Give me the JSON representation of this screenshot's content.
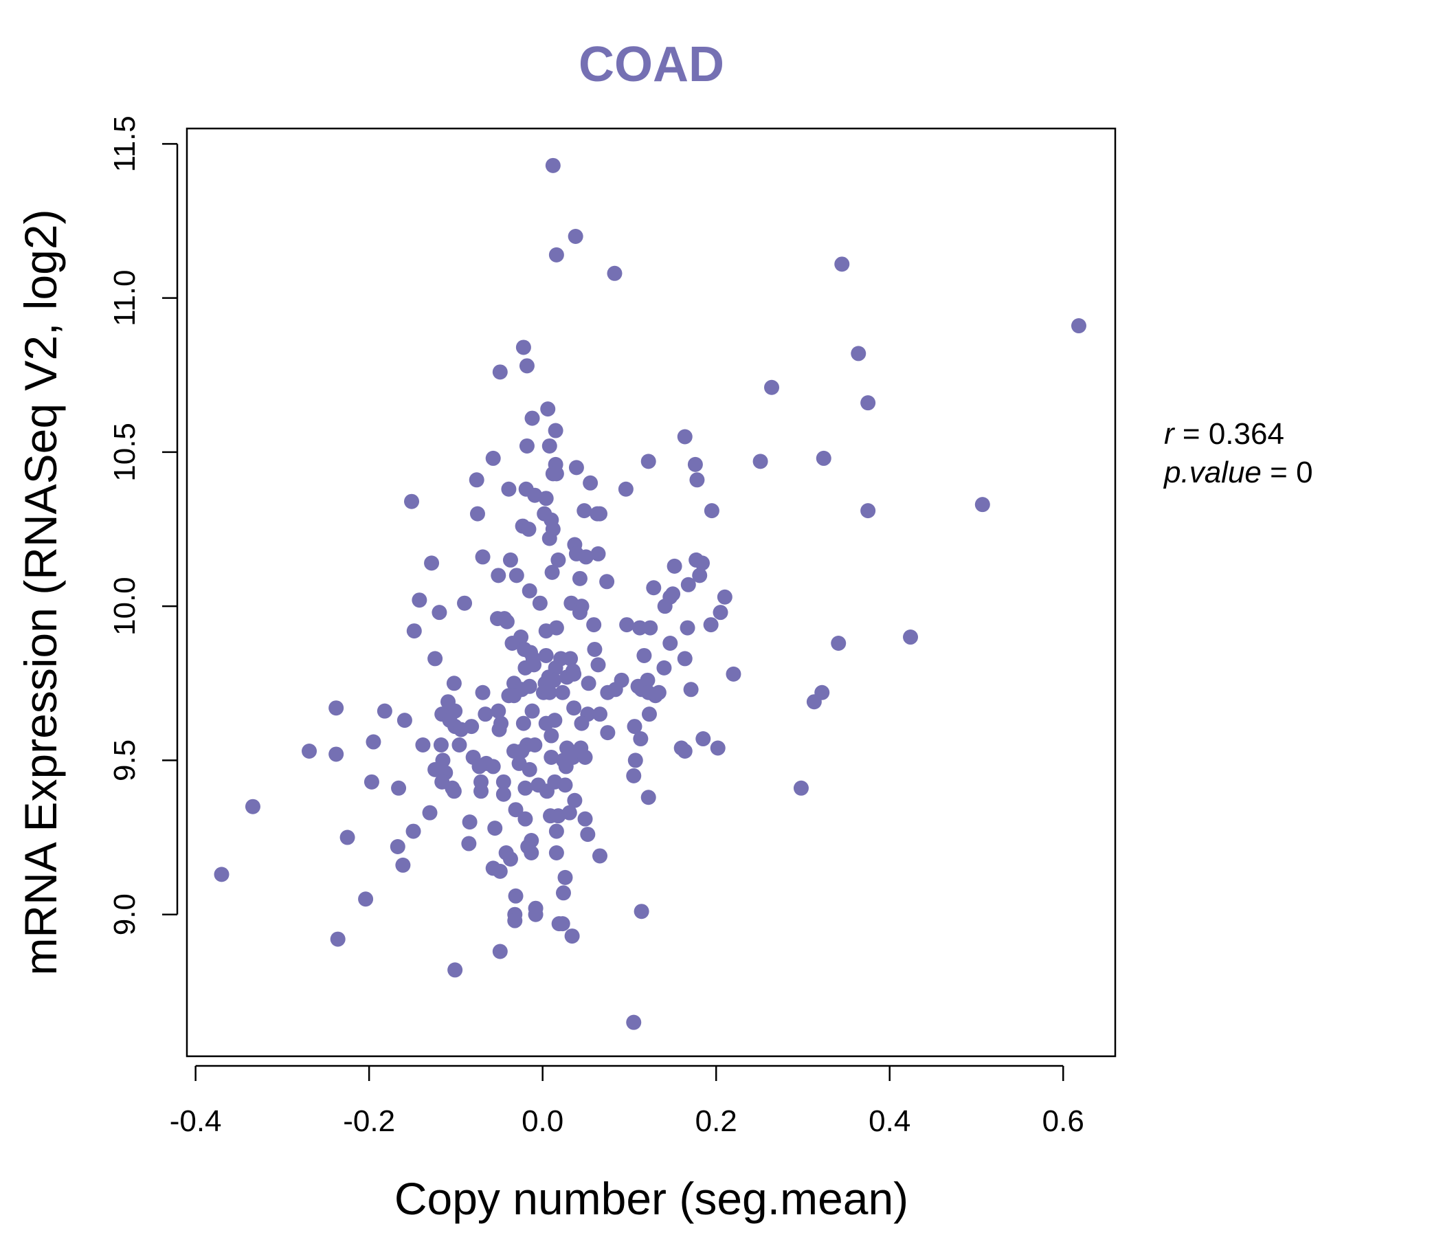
{
  "chart_data": {
    "type": "scatter",
    "title": "COAD",
    "xlabel": "Copy number (seg.mean)",
    "ylabel": "mRNA Expression (RNASeq V2, log2)",
    "xlim": [
      -0.41,
      0.66
    ],
    "ylim": [
      8.54,
      11.55
    ],
    "x_ticks": [
      -0.4,
      -0.2,
      0.0,
      0.2,
      0.4,
      0.6
    ],
    "x_tick_labels": [
      "-0.4",
      "-0.2",
      "0.0",
      "0.2",
      "0.4",
      "0.6"
    ],
    "y_ticks": [
      9.0,
      9.5,
      10.0,
      10.5,
      11.0,
      11.5
    ],
    "y_tick_labels": [
      "9.0",
      "9.5",
      "10.0",
      "10.5",
      "11.0",
      "11.5"
    ],
    "grid": false,
    "point_color": "#7570b3",
    "annotations": {
      "r_label": "r",
      "r_value": "0.364",
      "p_label": "p.value",
      "p_value": "0",
      "eq": "="
    },
    "points": [
      [
        0.012,
        11.43
      ],
      [
        0.038,
        11.2
      ],
      [
        0.016,
        11.14
      ],
      [
        0.083,
        11.08
      ],
      [
        0.345,
        11.11
      ],
      [
        0.618,
        10.91
      ],
      [
        0.364,
        10.82
      ],
      [
        -0.022,
        10.84
      ],
      [
        -0.018,
        10.78
      ],
      [
        -0.049,
        10.76
      ],
      [
        0.264,
        10.71
      ],
      [
        0.375,
        10.66
      ],
      [
        0.006,
        10.64
      ],
      [
        -0.012,
        10.61
      ],
      [
        0.015,
        10.57
      ],
      [
        0.164,
        10.55
      ],
      [
        0.008,
        10.52
      ],
      [
        -0.018,
        10.52
      ],
      [
        -0.057,
        10.48
      ],
      [
        0.122,
        10.47
      ],
      [
        0.251,
        10.47
      ],
      [
        0.324,
        10.48
      ],
      [
        0.015,
        10.46
      ],
      [
        0.039,
        10.45
      ],
      [
        0.176,
        10.46
      ],
      [
        0.012,
        10.43
      ],
      [
        0.016,
        10.43
      ],
      [
        -0.076,
        10.41
      ],
      [
        0.055,
        10.4
      ],
      [
        0.178,
        10.41
      ],
      [
        -0.019,
        10.38
      ],
      [
        -0.039,
        10.38
      ],
      [
        0.096,
        10.38
      ],
      [
        -0.009,
        10.36
      ],
      [
        0.004,
        10.35
      ],
      [
        -0.151,
        10.34
      ],
      [
        0.507,
        10.33
      ],
      [
        -0.075,
        10.3
      ],
      [
        0.002,
        10.3
      ],
      [
        0.048,
        10.31
      ],
      [
        0.195,
        10.31
      ],
      [
        0.375,
        10.31
      ],
      [
        0.01,
        10.28
      ],
      [
        -0.023,
        10.26
      ],
      [
        -0.016,
        10.25
      ],
      [
        0.012,
        10.25
      ],
      [
        0.063,
        10.3
      ],
      [
        0.066,
        10.3
      ],
      [
        0.008,
        10.22
      ],
      [
        0.037,
        10.2
      ],
      [
        0.039,
        10.17
      ],
      [
        0.05,
        10.16
      ],
      [
        0.064,
        10.17
      ],
      [
        -0.069,
        10.16
      ],
      [
        -0.037,
        10.15
      ],
      [
        0.018,
        10.15
      ],
      [
        -0.128,
        10.14
      ],
      [
        0.184,
        10.14
      ],
      [
        0.177,
        10.15
      ],
      [
        0.152,
        10.13
      ],
      [
        0.011,
        10.11
      ],
      [
        -0.051,
        10.1
      ],
      [
        -0.03,
        10.1
      ],
      [
        0.043,
        10.09
      ],
      [
        0.074,
        10.08
      ],
      [
        0.168,
        10.07
      ],
      [
        0.15,
        10.04
      ],
      [
        0.128,
        10.06
      ],
      [
        0.181,
        10.1
      ],
      [
        -0.015,
        10.05
      ],
      [
        0.147,
        10.03
      ],
      [
        0.21,
        10.03
      ],
      [
        -0.142,
        10.02
      ],
      [
        -0.09,
        10.01
      ],
      [
        -0.003,
        10.01
      ],
      [
        0.033,
        10.01
      ],
      [
        0.045,
        10.0
      ],
      [
        0.141,
        10.0
      ],
      [
        0.043,
        9.98
      ],
      [
        -0.119,
        9.98
      ],
      [
        0.205,
        9.98
      ],
      [
        -0.052,
        9.96
      ],
      [
        -0.044,
        9.96
      ],
      [
        -0.041,
        9.95
      ],
      [
        0.059,
        9.94
      ],
      [
        0.097,
        9.94
      ],
      [
        0.112,
        9.93
      ],
      [
        0.124,
        9.93
      ],
      [
        0.167,
        9.93
      ],
      [
        0.194,
        9.94
      ],
      [
        0.004,
        9.92
      ],
      [
        0.016,
        9.93
      ],
      [
        -0.148,
        9.92
      ],
      [
        -0.025,
        9.9
      ],
      [
        0.424,
        9.9
      ],
      [
        -0.035,
        9.88
      ],
      [
        0.147,
        9.88
      ],
      [
        0.341,
        9.88
      ],
      [
        -0.021,
        9.86
      ],
      [
        -0.014,
        9.85
      ],
      [
        0.06,
        9.86
      ],
      [
        -0.011,
        9.83
      ],
      [
        0.004,
        9.84
      ],
      [
        0.021,
        9.83
      ],
      [
        0.032,
        9.83
      ],
      [
        0.117,
        9.84
      ],
      [
        0.164,
        9.83
      ],
      [
        -0.124,
        9.83
      ],
      [
        0.064,
        9.81
      ],
      [
        -0.02,
        9.8
      ],
      [
        -0.01,
        9.81
      ],
      [
        0.015,
        9.8
      ],
      [
        0.035,
        9.79
      ],
      [
        0.14,
        9.8
      ],
      [
        0.007,
        9.77
      ],
      [
        0.028,
        9.77
      ],
      [
        0.036,
        9.78
      ],
      [
        0.003,
        9.75
      ],
      [
        0.013,
        9.76
      ],
      [
        0.053,
        9.75
      ],
      [
        0.091,
        9.76
      ],
      [
        0.11,
        9.74
      ],
      [
        0.121,
        9.76
      ],
      [
        0.22,
        9.78
      ],
      [
        -0.033,
        9.75
      ],
      [
        -0.024,
        9.73
      ],
      [
        -0.015,
        9.74
      ],
      [
        -0.102,
        9.75
      ],
      [
        0.001,
        9.72
      ],
      [
        0.008,
        9.72
      ],
      [
        0.023,
        9.72
      ],
      [
        0.075,
        9.72
      ],
      [
        0.084,
        9.73
      ],
      [
        0.114,
        9.73
      ],
      [
        0.122,
        9.72
      ],
      [
        0.13,
        9.71
      ],
      [
        0.134,
        9.72
      ],
      [
        0.171,
        9.73
      ],
      [
        -0.069,
        9.72
      ],
      [
        -0.039,
        9.71
      ],
      [
        -0.033,
        9.71
      ],
      [
        0.322,
        9.72
      ],
      [
        0.313,
        9.69
      ],
      [
        -0.109,
        9.69
      ],
      [
        -0.238,
        9.67
      ],
      [
        -0.182,
        9.66
      ],
      [
        -0.101,
        9.66
      ],
      [
        -0.116,
        9.65
      ],
      [
        -0.066,
        9.65
      ],
      [
        -0.051,
        9.66
      ],
      [
        -0.012,
        9.66
      ],
      [
        0.036,
        9.67
      ],
      [
        0.052,
        9.65
      ],
      [
        0.066,
        9.65
      ],
      [
        0.123,
        9.65
      ],
      [
        -0.159,
        9.63
      ],
      [
        -0.107,
        9.63
      ],
      [
        -0.101,
        9.61
      ],
      [
        -0.082,
        9.61
      ],
      [
        -0.048,
        9.62
      ],
      [
        -0.022,
        9.62
      ],
      [
        0.004,
        9.62
      ],
      [
        0.014,
        9.63
      ],
      [
        0.045,
        9.62
      ],
      [
        0.106,
        9.61
      ],
      [
        -0.094,
        9.6
      ],
      [
        -0.05,
        9.6
      ],
      [
        0.01,
        9.58
      ],
      [
        0.075,
        9.59
      ],
      [
        0.185,
        9.57
      ],
      [
        0.113,
        9.57
      ],
      [
        -0.195,
        9.56
      ],
      [
        -0.138,
        9.55
      ],
      [
        -0.117,
        9.55
      ],
      [
        -0.096,
        9.55
      ],
      [
        -0.018,
        9.55
      ],
      [
        -0.009,
        9.55
      ],
      [
        0.028,
        9.54
      ],
      [
        0.044,
        9.54
      ],
      [
        0.16,
        9.54
      ],
      [
        0.202,
        9.54
      ],
      [
        -0.269,
        9.53
      ],
      [
        -0.238,
        9.52
      ],
      [
        -0.033,
        9.53
      ],
      [
        -0.024,
        9.53
      ],
      [
        0.01,
        9.51
      ],
      [
        0.024,
        9.5
      ],
      [
        0.035,
        9.51
      ],
      [
        0.049,
        9.51
      ],
      [
        0.107,
        9.5
      ],
      [
        0.164,
        9.53
      ],
      [
        -0.115,
        9.5
      ],
      [
        -0.08,
        9.51
      ],
      [
        -0.065,
        9.49
      ],
      [
        -0.057,
        9.48
      ],
      [
        -0.073,
        9.48
      ],
      [
        -0.027,
        9.49
      ],
      [
        -0.015,
        9.47
      ],
      [
        0.027,
        9.48
      ],
      [
        -0.124,
        9.47
      ],
      [
        -0.112,
        9.46
      ],
      [
        0.105,
        9.45
      ],
      [
        -0.197,
        9.43
      ],
      [
        -0.116,
        9.43
      ],
      [
        -0.104,
        9.41
      ],
      [
        -0.102,
        9.4
      ],
      [
        -0.071,
        9.43
      ],
      [
        -0.045,
        9.43
      ],
      [
        -0.02,
        9.41
      ],
      [
        -0.005,
        9.42
      ],
      [
        0.005,
        9.4
      ],
      [
        0.014,
        9.43
      ],
      [
        0.026,
        9.42
      ],
      [
        -0.166,
        9.41
      ],
      [
        -0.071,
        9.4
      ],
      [
        -0.045,
        9.39
      ],
      [
        0.298,
        9.41
      ],
      [
        0.122,
        9.38
      ],
      [
        0.037,
        9.37
      ],
      [
        -0.13,
        9.33
      ],
      [
        -0.031,
        9.34
      ],
      [
        -0.02,
        9.31
      ],
      [
        0.009,
        9.32
      ],
      [
        0.018,
        9.32
      ],
      [
        0.031,
        9.33
      ],
      [
        0.049,
        9.31
      ],
      [
        -0.084,
        9.3
      ],
      [
        -0.055,
        9.28
      ],
      [
        -0.149,
        9.27
      ],
      [
        0.016,
        9.27
      ],
      [
        0.052,
        9.26
      ],
      [
        -0.225,
        9.25
      ],
      [
        -0.013,
        9.24
      ],
      [
        -0.085,
        9.23
      ],
      [
        -0.167,
        9.22
      ],
      [
        -0.017,
        9.22
      ],
      [
        -0.042,
        9.2
      ],
      [
        -0.013,
        9.2
      ],
      [
        0.016,
        9.2
      ],
      [
        0.066,
        9.19
      ],
      [
        -0.037,
        9.18
      ],
      [
        -0.161,
        9.16
      ],
      [
        -0.057,
        9.15
      ],
      [
        -0.049,
        9.14
      ],
      [
        -0.37,
        9.13
      ],
      [
        0.026,
        9.12
      ],
      [
        0.024,
        9.07
      ],
      [
        -0.031,
        9.06
      ],
      [
        -0.204,
        9.05
      ],
      [
        -0.008,
        9.02
      ],
      [
        -0.032,
        9.0
      ],
      [
        -0.008,
        9.0
      ],
      [
        0.114,
        9.01
      ],
      [
        -0.032,
        8.98
      ],
      [
        0.019,
        8.97
      ],
      [
        0.023,
        8.97
      ],
      [
        0.034,
        8.93
      ],
      [
        -0.236,
        8.92
      ],
      [
        -0.049,
        8.88
      ],
      [
        -0.101,
        8.82
      ],
      [
        0.105,
        8.65
      ],
      [
        -0.334,
        9.35
      ]
    ]
  }
}
